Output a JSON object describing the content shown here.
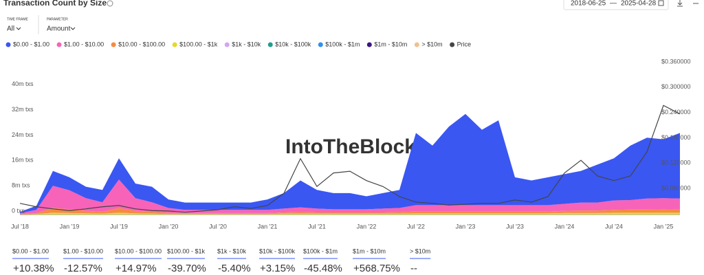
{
  "header": {
    "title": "Transaction Count by Size",
    "time_frame_label": "TIME FRAME",
    "time_frame": "All",
    "parameter_label": "PARAMETER",
    "parameter": "Amount",
    "date_from": "2018-06-25",
    "date_separator": "—",
    "date_to": "2025-04-28",
    "watermark": "IntoTheBlock"
  },
  "chart_data": {
    "type": "area",
    "stacked": true,
    "grid": false,
    "categories": [
      "Jul '18",
      null,
      null,
      "Jan '19",
      null,
      null,
      "Jul '19",
      null,
      null,
      "Jan '20",
      null,
      null,
      "Jul '20",
      null,
      null,
      "Jan '21",
      null,
      null,
      "Jul '21",
      null,
      null,
      "Jan '22",
      null,
      null,
      "Jul '22",
      null,
      null,
      "Jan '23",
      null,
      null,
      "Jul '23",
      null,
      null,
      "Jan '24",
      null,
      null,
      "Jul '24",
      null,
      null,
      "Jan '25",
      null
    ],
    "ylim": [
      0,
      48
    ],
    "yticks": [
      {
        "value": 0,
        "label": "0 txs"
      },
      {
        "value": 8,
        "label": "8m txs"
      },
      {
        "value": 16,
        "label": "16m txs"
      },
      {
        "value": 24,
        "label": "24m txs"
      },
      {
        "value": 32,
        "label": "32m txs"
      },
      {
        "value": 40,
        "label": "40m txs"
      }
    ],
    "y2lim": [
      0,
      0.36
    ],
    "y2ticks": [
      {
        "value": 0.06,
        "label": "$0.060000"
      },
      {
        "value": 0.12,
        "label": "$0.120000"
      },
      {
        "value": 0.18,
        "label": "$0.180000"
      },
      {
        "value": 0.24,
        "label": "$0.240000"
      },
      {
        "value": 0.3,
        "label": "$0.300000"
      },
      {
        "value": 0.36,
        "label": "$0.360000"
      }
    ],
    "series": [
      {
        "name": "$0.00 - $1.00",
        "color": "#3a57f2",
        "values": [
          0.4,
          1.3,
          4.7,
          4.1,
          3.6,
          3.9,
          6.7,
          4.6,
          4.9,
          2.7,
          2.3,
          2.3,
          2.3,
          2.3,
          2.3,
          3.3,
          4.9,
          8.5,
          5.9,
          5.1,
          5.1,
          4.1,
          4.9,
          5.7,
          22.8,
          18.8,
          24.8,
          28.8,
          23.8,
          26.8,
          8.8,
          7.8,
          8.8,
          9.4,
          10,
          12,
          13.3,
          17.2,
          19.2,
          18.6,
          20.7
        ]
      },
      {
        "name": "$1.00 - $10.00",
        "color": "#f763b8",
        "values": [
          0.3,
          1,
          7,
          6,
          4,
          3,
          9,
          4,
          3,
          1.5,
          1,
          1,
          1,
          1,
          1,
          1,
          1.2,
          1.5,
          1.2,
          1,
          1,
          1,
          1.2,
          1.3,
          2,
          2,
          2,
          2,
          2,
          2,
          2,
          2,
          2,
          2.2,
          2.5,
          2.5,
          3,
          3,
          3.5,
          3.5,
          3.5
        ]
      },
      {
        "name": "$10.00 - $100.00",
        "color": "#f58b42",
        "values": [
          0.1,
          0.3,
          1.5,
          1.2,
          0.8,
          0.6,
          1.5,
          0.8,
          0.6,
          0.4,
          0.3,
          0.3,
          0.3,
          0.3,
          0.3,
          0.3,
          0.4,
          0.5,
          0.4,
          0.4,
          0.4,
          0.4,
          0.4,
          0.5,
          0.6,
          0.6,
          0.6,
          0.6,
          0.6,
          0.6,
          0.6,
          0.6,
          0.6,
          0.7,
          0.8,
          0.8,
          0.9,
          1,
          1,
          1.1,
          1
        ]
      },
      {
        "name": "$100.00 - $1k",
        "color": "#e8d82a",
        "values": [
          0.05,
          0.2,
          0.6,
          0.5,
          0.4,
          0.3,
          0.6,
          0.4,
          0.3,
          0.2,
          0.2,
          0.2,
          0.2,
          0.2,
          0.2,
          0.2,
          0.3,
          0.3,
          0.3,
          0.3,
          0.3,
          0.3,
          0.3,
          0.3,
          0.4,
          0.4,
          0.4,
          0.4,
          0.4,
          0.4,
          0.4,
          0.4,
          0.4,
          0.5,
          0.5,
          0.5,
          0.6,
          0.6,
          0.6,
          0.6,
          0.6
        ]
      },
      {
        "name": "$1k - $10k",
        "color": "#d4a5f2",
        "values": [
          0.1,
          0.1,
          0.1,
          0.1,
          0.1,
          0.1,
          0.1,
          0.1,
          0.1,
          0.1,
          0.1,
          0.1,
          0.1,
          0.1,
          0.1,
          0.1,
          0.1,
          0.1,
          0.1,
          0.1,
          0.1,
          0.1,
          0.1,
          0.1,
          0.1,
          0.1,
          0.1,
          0.1,
          0.1,
          0.1,
          0.1,
          0.1,
          0.1,
          0.1,
          0.1,
          0.1,
          0.1,
          0.1,
          0.1,
          0.1,
          0.1
        ]
      },
      {
        "name": "$10k - $100k",
        "color": "#1f9e8f",
        "values": [
          0.05,
          0.05,
          0.05,
          0.05,
          0.05,
          0.05,
          0.05,
          0.05,
          0.05,
          0.05,
          0.05,
          0.05,
          0.05,
          0.05,
          0.05,
          0.05,
          0.05,
          0.05,
          0.05,
          0.05,
          0.05,
          0.05,
          0.05,
          0.05,
          0.05,
          0.05,
          0.05,
          0.05,
          0.05,
          0.05,
          0.05,
          0.05,
          0.05,
          0.05,
          0.05,
          0.05,
          0.05,
          0.05,
          0.05,
          0.05,
          0.05
        ]
      },
      {
        "name": "$100k - $1m",
        "color": "#2f90f0",
        "values": [
          0.02,
          0.02,
          0.02,
          0.02,
          0.02,
          0.02,
          0.02,
          0.02,
          0.02,
          0.02,
          0.02,
          0.02,
          0.02,
          0.02,
          0.02,
          0.02,
          0.02,
          0.02,
          0.02,
          0.02,
          0.02,
          0.02,
          0.02,
          0.02,
          0.02,
          0.02,
          0.02,
          0.02,
          0.02,
          0.02,
          0.02,
          0.02,
          0.02,
          0.02,
          0.02,
          0.02,
          0.02,
          0.02,
          0.02,
          0.02,
          0.02
        ]
      },
      {
        "name": "$1m - $10m",
        "color": "#3b1582",
        "values": [
          0.01,
          0.01,
          0.01,
          0.01,
          0.01,
          0.01,
          0.01,
          0.01,
          0.01,
          0.01,
          0.01,
          0.01,
          0.01,
          0.01,
          0.01,
          0.01,
          0.01,
          0.01,
          0.01,
          0.01,
          0.01,
          0.01,
          0.01,
          0.01,
          0.01,
          0.01,
          0.01,
          0.01,
          0.01,
          0.01,
          0.01,
          0.01,
          0.01,
          0.01,
          0.01,
          0.01,
          0.01,
          0.01,
          0.01,
          0.01,
          0.01
        ]
      },
      {
        "name": "> $10m",
        "color": "#f2c08e",
        "values": [
          0,
          0,
          0,
          0,
          0,
          0,
          0,
          0,
          0,
          0,
          0,
          0,
          0,
          0,
          0,
          0,
          0,
          0,
          0,
          0,
          0,
          0,
          0,
          0,
          0,
          0,
          0,
          0,
          0,
          0,
          0,
          0,
          0,
          0,
          0,
          0,
          0,
          0,
          0,
          0,
          0
        ]
      },
      {
        "name": "Price",
        "color": "#444444",
        "type": "line",
        "axis": "y2",
        "values": [
          0.028,
          0.02,
          0.015,
          0.011,
          0.015,
          0.02,
          0.023,
          0.015,
          0.011,
          0.01,
          0.007,
          0.01,
          0.013,
          0.02,
          0.016,
          0.023,
          0.052,
          0.134,
          0.068,
          0.1,
          0.104,
          0.082,
          0.068,
          0.044,
          0.031,
          0.028,
          0.024,
          0.026,
          0.028,
          0.028,
          0.036,
          0.031,
          0.044,
          0.1,
          0.13,
          0.093,
          0.082,
          0.093,
          0.15,
          0.26,
          0.24
        ]
      }
    ]
  },
  "table": {
    "columns": [
      {
        "label": "$0.00 - $1.00",
        "value": "+10.38%"
      },
      {
        "label": "$1.00 - $10.00",
        "value": "-12.57%"
      },
      {
        "label": "$10.00 - $100.00",
        "value": "+14.97%"
      },
      {
        "label": "$100.00 - $1k",
        "value": "-39.70%"
      },
      {
        "label": "$1k - $10k",
        "value": "-5.40%"
      },
      {
        "label": "$10k - $100k",
        "value": "+3.15%"
      },
      {
        "label": "$100k - $1m",
        "value": "-45.48%"
      },
      {
        "label": "$1m - $10m",
        "value": "+568.75%"
      },
      {
        "label": "> $10m",
        "value": "--"
      }
    ]
  }
}
